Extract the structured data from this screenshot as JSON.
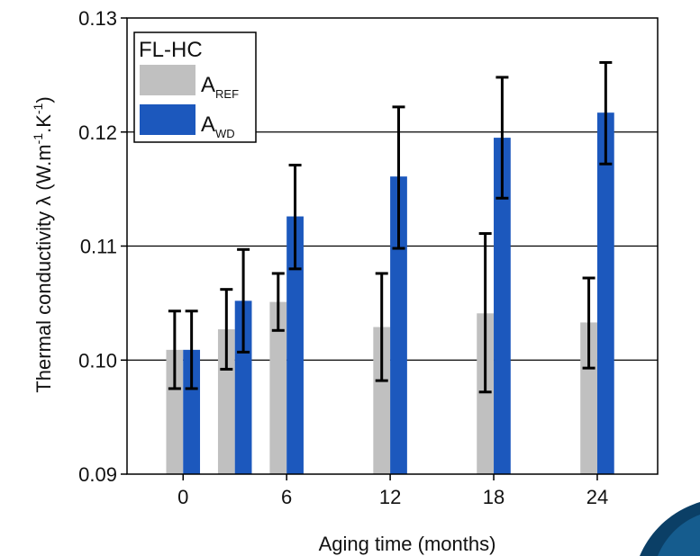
{
  "chart_data": {
    "type": "bar",
    "x": [
      0,
      3,
      6,
      12,
      18,
      24
    ],
    "x_ticks": [
      "0",
      "6",
      "12",
      "18",
      "24"
    ],
    "x_tick_values": [
      0,
      6,
      12,
      18,
      24
    ],
    "xlim": [
      -3.25,
      27.5
    ],
    "ylim": [
      0.09,
      0.13
    ],
    "y_ticks": [
      "0.09",
      "0.10",
      "0.11",
      "0.12",
      "0.13"
    ],
    "y_tick_values": [
      0.09,
      0.1,
      0.11,
      0.12,
      0.13
    ],
    "xlabel": "Aging time (months)",
    "ylabel_main": "Thermal conductivity λ (W.m",
    "ylabel_sup1": "-1",
    "ylabel_mid": ".K",
    "ylabel_sup2": "-1",
    "ylabel_end": ")",
    "grid": "horizontal",
    "legend_position": "top-left",
    "legend_title": "FL-HC",
    "series": [
      {
        "name_base": "A",
        "name_sub": "REF",
        "color": "#c0c0c0",
        "values": [
          0.1009,
          0.1027,
          0.1051,
          0.1029,
          0.1041,
          0.1033
        ],
        "error_low": [
          0.0975,
          0.0992,
          0.1026,
          0.0982,
          0.0972,
          0.0993
        ],
        "error_high": [
          0.1043,
          0.1062,
          0.1076,
          0.1076,
          0.1111,
          0.1072
        ]
      },
      {
        "name_base": "A",
        "name_sub": "WD",
        "color": "#1c58bd",
        "values": [
          0.1009,
          0.1052,
          0.1126,
          0.1161,
          0.1195,
          0.1217
        ],
        "error_low": [
          0.0975,
          0.1007,
          0.108,
          0.1098,
          0.1142,
          0.1172
        ],
        "error_high": [
          0.1043,
          0.1097,
          0.1171,
          0.1222,
          0.1248,
          0.1261
        ]
      }
    ]
  }
}
